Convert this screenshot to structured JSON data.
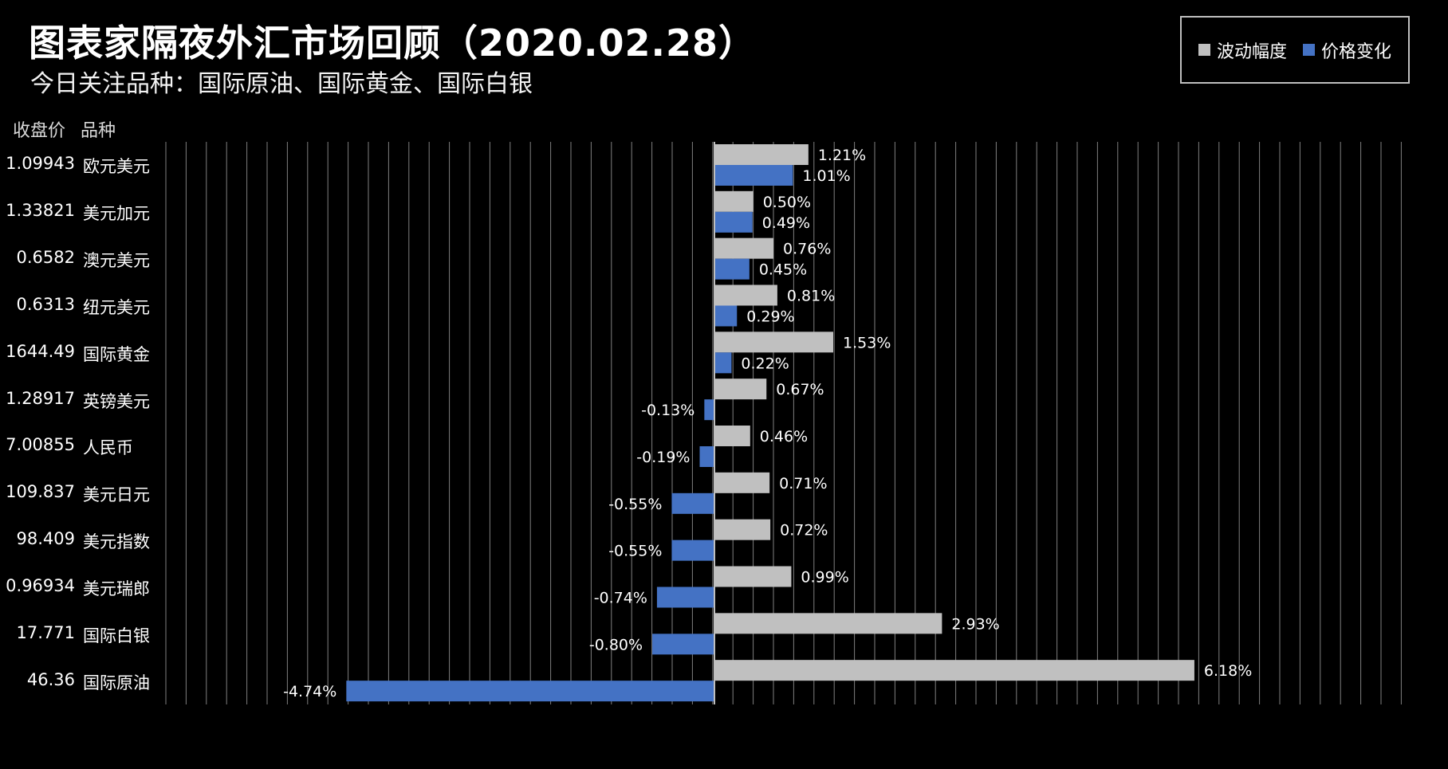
{
  "header": {
    "title": "图表家隔夜外汇市场回顾（2020.02.28）",
    "subtitle": "今日关注品种：国际原油、国际黄金、国际白银"
  },
  "columns": {
    "price": "收盘价",
    "name": "品种"
  },
  "legend": {
    "volatility": "波动幅度",
    "change": "价格变化"
  },
  "colors": {
    "volatility": "#c0c0c0",
    "change": "#4472c4",
    "background": "#000000",
    "grid": "#7f7f7f"
  },
  "chart_data": {
    "type": "bar",
    "orientation": "horizontal",
    "categories": [
      "欧元美元",
      "美元加元",
      "澳元美元",
      "纽元美元",
      "国际黄金",
      "英镑美元",
      "人民币",
      "美元日元",
      "美元指数",
      "美元瑞郎",
      "国际白银",
      "国际原油"
    ],
    "close_prices": [
      "1.09943",
      "1.33821",
      "0.6582",
      "0.6313",
      "1644.49",
      "1.28917",
      "7.00855",
      "109.837",
      "98.409",
      "0.96934",
      "17.771",
      "46.36"
    ],
    "series": [
      {
        "name": "波动幅度",
        "values": [
          1.21,
          0.5,
          0.76,
          0.81,
          1.53,
          0.67,
          0.46,
          0.71,
          0.72,
          0.99,
          2.93,
          6.18
        ],
        "labels": [
          "1.21%",
          "0.50%",
          "0.76%",
          "0.81%",
          "1.53%",
          "0.67%",
          "0.46%",
          "0.71%",
          "0.72%",
          "0.99%",
          "2.93%",
          "6.18%"
        ]
      },
      {
        "name": "价格变化",
        "values": [
          1.01,
          0.49,
          0.45,
          0.29,
          0.22,
          -0.13,
          -0.19,
          -0.55,
          -0.55,
          -0.74,
          -0.8,
          -4.74
        ],
        "labels": [
          "1.01%",
          "0.49%",
          "0.45%",
          "0.29%",
          "0.22%",
          "-0.13%",
          "-0.19%",
          "-0.55%",
          "-0.55%",
          "-0.74%",
          "-0.80%",
          "-4.74%"
        ]
      }
    ],
    "xlim": [
      -5.4,
      6.8
    ],
    "grid": true,
    "legend_position": "top-right"
  }
}
